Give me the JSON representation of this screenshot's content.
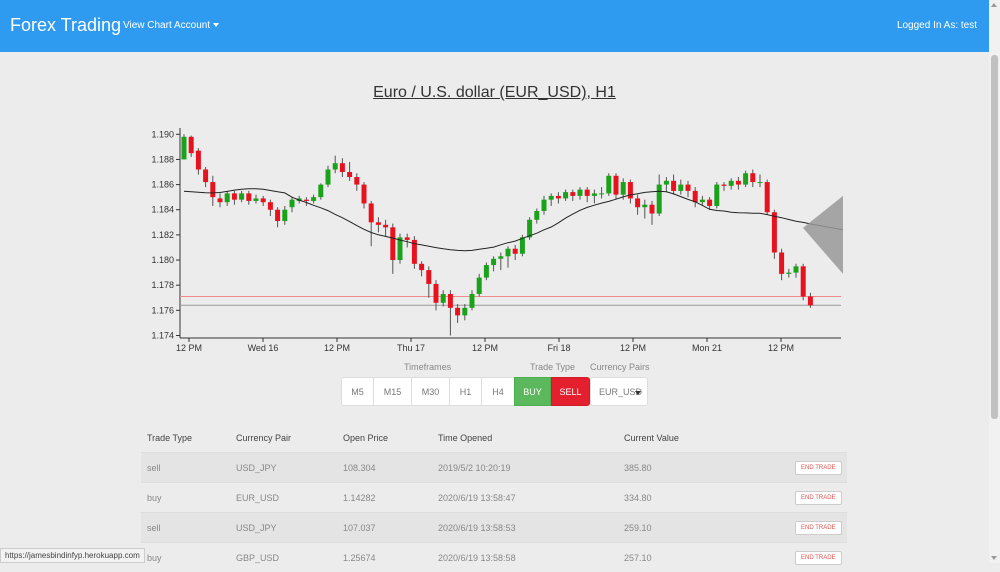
{
  "navbar": {
    "brand": "Forex Trading",
    "links": [
      "View Chart",
      "Account"
    ],
    "logged_in": "Logged In As:  test",
    "color": "#2f9bf0"
  },
  "chart": {
    "title": "Euro / U.S. dollar (EUR_USD), H1"
  },
  "chart_data": {
    "type": "candlestick",
    "title": "Euro / U.S. dollar (EUR_USD), H1",
    "y_ticks": [
      "1.190",
      "1.188",
      "1.186",
      "1.184",
      "1.182",
      "1.180",
      "1.178",
      "1.176",
      "1.174"
    ],
    "x_ticks": [
      "12 PM",
      "Wed 16",
      "12 PM",
      "Thu 17",
      "12 PM",
      "Fri 18",
      "12 PM",
      "Mon 21",
      "12 PM"
    ],
    "ylim": [
      1.1738,
      1.1905
    ],
    "up_color": "#1aa31a",
    "down_color": "#e8121f",
    "price_line": 1.1771,
    "bid_line": 1.1764,
    "candles": [
      [
        1.188,
        1.1898,
        1.188,
        1.19
      ],
      [
        1.1898,
        1.1885,
        1.1882,
        1.1899
      ],
      [
        1.1887,
        1.1872,
        1.1868,
        1.1889
      ],
      [
        1.1872,
        1.1862,
        1.1858,
        1.1874
      ],
      [
        1.1862,
        1.185,
        1.1843,
        1.1867
      ],
      [
        1.1849,
        1.1846,
        1.1842,
        1.1853
      ],
      [
        1.1846,
        1.1853,
        1.1843,
        1.1855
      ],
      [
        1.1853,
        1.1848,
        1.1844,
        1.1855
      ],
      [
        1.1848,
        1.1853,
        1.1846,
        1.1855
      ],
      [
        1.1853,
        1.1847,
        1.1844,
        1.1855
      ],
      [
        1.1847,
        1.1849,
        1.1845,
        1.1852
      ],
      [
        1.1849,
        1.1846,
        1.1843,
        1.1851
      ],
      [
        1.1846,
        1.184,
        1.1835,
        1.1848
      ],
      [
        1.184,
        1.1831,
        1.1826,
        1.1842
      ],
      [
        1.1831,
        1.184,
        1.1828,
        1.1843
      ],
      [
        1.1842,
        1.1848,
        1.1838,
        1.185
      ],
      [
        1.1847,
        1.1849,
        1.1845,
        1.1851
      ],
      [
        1.1848,
        1.1847,
        1.1843,
        1.185
      ],
      [
        1.1847,
        1.185,
        1.1845,
        1.1852
      ],
      [
        1.185,
        1.186,
        1.1848,
        1.1861
      ],
      [
        1.186,
        1.1872,
        1.1858,
        1.1875
      ],
      [
        1.1872,
        1.1877,
        1.1869,
        1.1883
      ],
      [
        1.1877,
        1.187,
        1.1866,
        1.1881
      ],
      [
        1.187,
        1.1866,
        1.1863,
        1.1878
      ],
      [
        1.1866,
        1.186,
        1.1855,
        1.1869
      ],
      [
        1.186,
        1.1845,
        1.1841,
        1.1862
      ],
      [
        1.1845,
        1.183,
        1.1811,
        1.1847
      ],
      [
        1.183,
        1.1828,
        1.1822,
        1.1834
      ],
      [
        1.1828,
        1.1826,
        1.1819,
        1.1832
      ],
      [
        1.1826,
        1.18,
        1.1789,
        1.1829
      ],
      [
        1.18,
        1.1818,
        1.1797,
        1.1821
      ],
      [
        1.1818,
        1.1816,
        1.181,
        1.1821
      ],
      [
        1.1816,
        1.1797,
        1.1793,
        1.1819
      ],
      [
        1.1797,
        1.1792,
        1.1787,
        1.1799
      ],
      [
        1.1792,
        1.1781,
        1.177,
        1.1795
      ],
      [
        1.1781,
        1.1766,
        1.176,
        1.1784
      ],
      [
        1.1766,
        1.1773,
        1.1763,
        1.1776
      ],
      [
        1.1773,
        1.1762,
        1.174,
        1.1776
      ],
      [
        1.1762,
        1.1756,
        1.175,
        1.1765
      ],
      [
        1.1756,
        1.1762,
        1.1752,
        1.1765
      ],
      [
        1.1762,
        1.1773,
        1.176,
        1.1776
      ],
      [
        1.1773,
        1.1786,
        1.1771,
        1.1789
      ],
      [
        1.1786,
        1.1796,
        1.1784,
        1.1798
      ],
      [
        1.1796,
        1.1801,
        1.1791,
        1.1803
      ],
      [
        1.1801,
        1.1803,
        1.1792,
        1.1806
      ],
      [
        1.1803,
        1.1809,
        1.1794,
        1.1811
      ],
      [
        1.1809,
        1.1805,
        1.18,
        1.1812
      ],
      [
        1.1805,
        1.1818,
        1.1803,
        1.182
      ],
      [
        1.1818,
        1.1832,
        1.1816,
        1.1834
      ],
      [
        1.1832,
        1.1839,
        1.1829,
        1.1841
      ],
      [
        1.1839,
        1.1848,
        1.1836,
        1.1851
      ],
      [
        1.1848,
        1.1851,
        1.1843,
        1.1853
      ],
      [
        1.1851,
        1.1849,
        1.1845,
        1.1854
      ],
      [
        1.1849,
        1.1854,
        1.1847,
        1.1856
      ],
      [
        1.1854,
        1.1851,
        1.1847,
        1.1856
      ],
      [
        1.1851,
        1.1856,
        1.1848,
        1.1858
      ],
      [
        1.1856,
        1.1851,
        1.1846,
        1.1858
      ],
      [
        1.1851,
        1.1853,
        1.1845,
        1.1856
      ],
      [
        1.1853,
        1.1853,
        1.1849,
        1.1858
      ],
      [
        1.1853,
        1.1867,
        1.1851,
        1.1869
      ],
      [
        1.1867,
        1.1852,
        1.1848,
        1.1869
      ],
      [
        1.1852,
        1.1862,
        1.1848,
        1.1865
      ],
      [
        1.1862,
        1.1849,
        1.1845,
        1.1864
      ],
      [
        1.1849,
        1.1842,
        1.1836,
        1.1852
      ],
      [
        1.1842,
        1.1844,
        1.1833,
        1.1848
      ],
      [
        1.1844,
        1.1837,
        1.1828,
        1.1847
      ],
      [
        1.1837,
        1.186,
        1.1835,
        1.1868
      ],
      [
        1.186,
        1.1863,
        1.1854,
        1.1866
      ],
      [
        1.1863,
        1.1855,
        1.1852,
        1.1868
      ],
      [
        1.1855,
        1.186,
        1.1852,
        1.1864
      ],
      [
        1.186,
        1.1855,
        1.185,
        1.1863
      ],
      [
        1.1855,
        1.1846,
        1.1842,
        1.1858
      ],
      [
        1.1846,
        1.1848,
        1.1843,
        1.1851
      ],
      [
        1.1848,
        1.1843,
        1.184,
        1.185
      ],
      [
        1.1843,
        1.186,
        1.1841,
        1.1862
      ],
      [
        1.186,
        1.1859,
        1.1855,
        1.1862
      ],
      [
        1.1859,
        1.1863,
        1.1856,
        1.1865
      ],
      [
        1.1863,
        1.186,
        1.1856,
        1.1866
      ],
      [
        1.186,
        1.1869,
        1.1858,
        1.1871
      ],
      [
        1.1869,
        1.1862,
        1.1858,
        1.1872
      ],
      [
        1.1862,
        1.1862,
        1.1858,
        1.1868
      ],
      [
        1.1862,
        1.1838,
        1.1836,
        1.1864
      ],
      [
        1.1838,
        1.1806,
        1.1801,
        1.184
      ],
      [
        1.1806,
        1.1789,
        1.1784,
        1.1809
      ],
      [
        1.1789,
        1.179,
        1.1786,
        1.1793
      ],
      [
        1.179,
        1.1795,
        1.1786,
        1.1797
      ],
      [
        1.1795,
        1.1771,
        1.1768,
        1.1797
      ],
      [
        1.1771,
        1.1764,
        1.1762,
        1.1774
      ]
    ]
  },
  "controls": {
    "timeframes_label": "Timeframes",
    "trade_type_label": "Trade Type",
    "currency_pairs_label": "Currency Pairs",
    "timeframes": [
      "M5",
      "M15",
      "M30",
      "H1",
      "H4"
    ],
    "buy": "BUY",
    "sell": "SELL",
    "currency_pair_selected": "EUR_USD"
  },
  "table": {
    "headers": [
      "Trade Type",
      "Currency Pair",
      "Open Price",
      "Time Opened",
      "Current Value",
      ""
    ],
    "end_label": "END TRADE",
    "rows": [
      [
        "sell",
        "USD_JPY",
        "108.304",
        "2019/5/2 10:20:19",
        "385.80"
      ],
      [
        "buy",
        "EUR_USD",
        "1.14282",
        "2020/6/19 13:58:47",
        "334.80"
      ],
      [
        "sell",
        "USD_JPY",
        "107.037",
        "2020/6/19 13:58:53",
        "259.10"
      ],
      [
        "buy",
        "GBP_USD",
        "1.25674",
        "2020/6/19 13:58:58",
        "257.10"
      ]
    ]
  },
  "status_url": "https://jamesbindinfyp.herokuapp.com"
}
